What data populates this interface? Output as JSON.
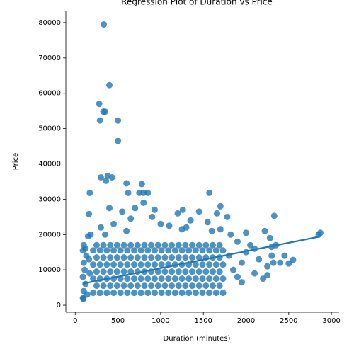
{
  "chart_data": {
    "type": "scatter",
    "title": "Regression Plot of Duration vs Price",
    "x_label": "Duration (minutes)",
    "y_label": "Price",
    "xlim": [
      -110,
      3090
    ],
    "ylim": [
      -2000,
      83400
    ],
    "xticks": [
      0,
      500,
      1000,
      1500,
      2000,
      2500,
      3000
    ],
    "yticks": [
      0,
      10000,
      20000,
      30000,
      40000,
      50000,
      60000,
      70000,
      80000
    ],
    "regression": {
      "x": [
        90,
        2860
      ],
      "y": [
        6100,
        19400
      ],
      "color": "#1f77b4"
    },
    "series": [
      {
        "color": "#1f77b4",
        "x": [
          210,
          290,
          370,
          450,
          530,
          610,
          690,
          770,
          850,
          930,
          1010,
          1090,
          1170,
          1250,
          1330,
          1410,
          1490,
          1570,
          1650,
          1730,
          210,
          290,
          370,
          450,
          530,
          610,
          690,
          770,
          850,
          930,
          1010,
          1090,
          1170,
          1250,
          1330,
          1410,
          1490,
          1570,
          1650,
          1730,
          210,
          290,
          370,
          450,
          530,
          610,
          690,
          770,
          850,
          930,
          1010,
          1090,
          1170,
          1250,
          1330,
          1410,
          1490,
          1570,
          1650,
          1730,
          210,
          290,
          370,
          450,
          530,
          610,
          690,
          770,
          850,
          930,
          1010,
          1090,
          1170,
          1250,
          1330,
          1410,
          1490,
          1570,
          1650,
          1730,
          250,
          330,
          410,
          490,
          570,
          650,
          730,
          810,
          890,
          970,
          1050,
          1130,
          1210,
          1290,
          1370,
          1450,
          1530,
          1610,
          1690,
          250,
          330,
          410,
          490,
          570,
          650,
          730,
          810,
          890,
          970,
          1050,
          1130,
          1210,
          1290,
          1370,
          1450,
          1530,
          1610,
          1690,
          250,
          330,
          410,
          490,
          570,
          650,
          730,
          810,
          890,
          970,
          1050,
          1130,
          1210,
          1290,
          1370,
          1450,
          1530,
          1610,
          1690,
          250,
          330,
          410,
          490,
          570,
          650,
          730,
          810,
          890,
          970,
          1050,
          1130,
          1210,
          1290,
          1370,
          1450,
          1530,
          1610,
          1690,
          90,
          100,
          120,
          90,
          110,
          100,
          130,
          100,
          150,
          180,
          95,
          140,
          170,
          160,
          120,
          90,
          1800,
          1850,
          1900,
          1950,
          2000,
          2050,
          2000,
          2100,
          2150,
          2200,
          2250,
          2280,
          2300,
          2300,
          2320,
          2350,
          2400,
          2450,
          2500,
          2550,
          1900,
          1950,
          1820,
          2250,
          2100,
          2850,
          2870,
          300,
          450,
          550,
          700,
          900,
          1100,
          1200,
          1350,
          1450,
          1550,
          1600,
          800,
          400,
          650,
          1000,
          1250,
          1700,
          1780,
          350,
          600,
          335,
          400,
          280,
          330,
          350,
          500,
          290,
          500,
          300,
          380,
          430,
          360,
          600,
          780,
          170,
          620,
          750,
          800,
          850,
          1570,
          160,
          2330,
          1700,
          1260,
          930,
          1660,
          1300,
          2220
        ],
        "y": [
          3500,
          3500,
          3500,
          3500,
          3500,
          3500,
          3500,
          3500,
          3500,
          3500,
          3500,
          3500,
          3500,
          3500,
          3500,
          3500,
          3500,
          3500,
          3500,
          3500,
          7500,
          7500,
          7500,
          7500,
          7500,
          7500,
          7500,
          7500,
          7500,
          7500,
          7500,
          7500,
          7500,
          7500,
          7500,
          7500,
          7500,
          7500,
          7500,
          7500,
          11500,
          11500,
          11500,
          11500,
          11500,
          11500,
          11500,
          11500,
          11500,
          11500,
          11500,
          11500,
          11500,
          11500,
          11500,
          11500,
          11500,
          11500,
          11500,
          11500,
          15500,
          15500,
          15500,
          15500,
          15500,
          15500,
          15500,
          15500,
          15500,
          15500,
          15500,
          15500,
          15500,
          15500,
          15500,
          15500,
          15500,
          15500,
          15500,
          15500,
          5500,
          5500,
          5500,
          5500,
          5500,
          5500,
          5500,
          5500,
          5500,
          5500,
          5500,
          5500,
          5500,
          5500,
          5500,
          5500,
          5500,
          5500,
          5500,
          9500,
          9500,
          9500,
          9500,
          9500,
          9500,
          9500,
          9500,
          9500,
          9500,
          9500,
          9500,
          9500,
          9500,
          9500,
          9500,
          9500,
          9500,
          9500,
          13500,
          13500,
          13500,
          13500,
          13500,
          13500,
          13500,
          13500,
          13500,
          13500,
          13500,
          13500,
          13500,
          13500,
          13500,
          13500,
          13500,
          13500,
          13500,
          17000,
          17000,
          17000,
          17000,
          17000,
          17000,
          17000,
          17000,
          17000,
          17000,
          17000,
          17000,
          17000,
          17000,
          17000,
          17000,
          17000,
          17000,
          17000,
          2000,
          4000,
          6000,
          8000,
          10000,
          12000,
          14000,
          17000,
          19500,
          20000,
          1800,
          3000,
          9000,
          13000,
          16000,
          15500,
          14000,
          10000,
          8000,
          12000,
          15000,
          17000,
          20500,
          9000,
          13000,
          7500,
          11000,
          19000,
          16500,
          14000,
          12000,
          17000,
          12000,
          14000,
          11800,
          12800,
          18000,
          6500,
          20000,
          8500,
          16000,
          20000,
          20500,
          22000,
          23000,
          26500,
          27500,
          25000,
          22500,
          26000,
          24000,
          26500,
          23500,
          21000,
          29000,
          27500,
          24500,
          23000,
          21500,
          21500,
          25000,
          20000,
          21000,
          79500,
          62300,
          57000,
          54800,
          54800,
          52300,
          52300,
          46500,
          36200,
          36600,
          36200,
          35200,
          34500,
          34300,
          31800,
          31800,
          31800,
          31800,
          31800,
          31800,
          25800,
          25300,
          28000,
          27000,
          27000,
          26000,
          22000,
          21000
        ]
      }
    ]
  }
}
